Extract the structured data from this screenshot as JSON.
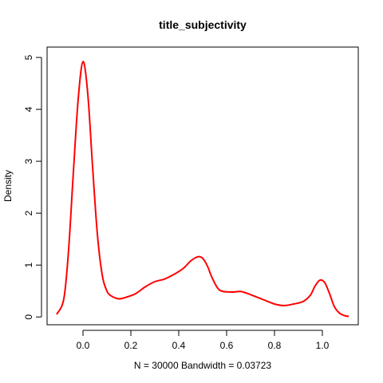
{
  "chart_data": {
    "type": "line",
    "title": "title_subjectivity",
    "xlabel": "N = 30000   Bandwidth = 0.03723",
    "ylabel": "Density",
    "xlim": [
      -0.15,
      1.15
    ],
    "ylim": [
      -0.15,
      5.2
    ],
    "x_ticks": [
      0.0,
      0.2,
      0.4,
      0.6,
      0.8,
      1.0
    ],
    "x_tick_labels": [
      "0.0",
      "0.2",
      "0.4",
      "0.6",
      "0.8",
      "1.0"
    ],
    "y_ticks": [
      0,
      1,
      2,
      3,
      4,
      5
    ],
    "y_tick_labels": [
      "0",
      "1",
      "2",
      "3",
      "4",
      "5"
    ],
    "grid": false,
    "series": [
      {
        "color": "#ff0000",
        "x": [
          -0.11,
          -0.08,
          -0.06,
          -0.04,
          -0.02,
          0.0,
          0.02,
          0.04,
          0.06,
          0.08,
          0.1,
          0.12,
          0.15,
          0.18,
          0.22,
          0.26,
          0.3,
          0.34,
          0.38,
          0.42,
          0.45,
          0.48,
          0.5,
          0.52,
          0.54,
          0.57,
          0.62,
          0.66,
          0.7,
          0.75,
          0.8,
          0.84,
          0.88,
          0.92,
          0.95,
          0.97,
          0.99,
          1.01,
          1.03,
          1.05,
          1.07,
          1.09,
          1.11
        ],
        "y": [
          0.05,
          0.35,
          1.3,
          2.8,
          4.2,
          4.92,
          4.3,
          2.9,
          1.6,
          0.82,
          0.5,
          0.4,
          0.35,
          0.38,
          0.45,
          0.58,
          0.68,
          0.73,
          0.82,
          0.94,
          1.08,
          1.16,
          1.13,
          0.98,
          0.75,
          0.52,
          0.48,
          0.49,
          0.43,
          0.34,
          0.25,
          0.22,
          0.25,
          0.3,
          0.42,
          0.6,
          0.71,
          0.66,
          0.45,
          0.2,
          0.08,
          0.03,
          0.01
        ]
      }
    ]
  }
}
